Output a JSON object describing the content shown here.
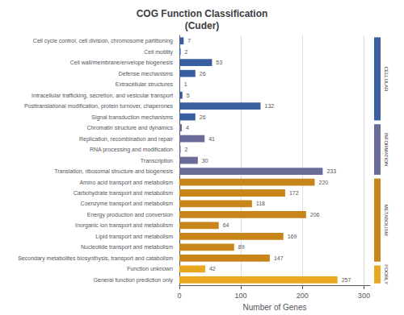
{
  "chart_data": {
    "type": "bar",
    "orientation": "horizontal",
    "title": "COG Function Classification\n(Cuder)",
    "xlabel": "Number of Genes",
    "categories": [
      "General function prediction only",
      "Function unknown",
      "Secondary metabolites biosynthysis, transport and catabolism",
      "Nucleotide transport and metabolism",
      "Lipid transport and metabolism",
      "Inorganic ion transport and metabolism",
      "Energy production and conversion",
      "Coenzyme transport and metabolism",
      "Carbohydrate transport and metabolism",
      "Amino acid transport and metabolism",
      "Translation, ribosomal structure and biogenesis",
      "Transcription",
      "RNA processing and modification",
      "Replication, recombination and repair",
      "Chromatin structure and dynamics",
      "Signal transduction mechanisms",
      "Posttranslational modification, protein turnover, chaperones",
      "Intracellular trafficking, secretion, and vesicular transport",
      "Extracellular structures",
      "Defense mechanisms",
      "Cell wall/membrane/envelope biogenesis",
      "Cell motility",
      "Cell cycle control, cell division, chromosome partitioning"
    ],
    "values": [
      257,
      42,
      147,
      89,
      169,
      64,
      206,
      118,
      172,
      220,
      233,
      30,
      2,
      41,
      4,
      26,
      132,
      5,
      1,
      26,
      53,
      2,
      7
    ],
    "colors": [
      "#E8A820",
      "#E8A820",
      "#C8851A",
      "#C8851A",
      "#C8851A",
      "#C8851A",
      "#C8851A",
      "#C8851A",
      "#C8851A",
      "#C8851A",
      "#6B6B9A",
      "#6B6B9A",
      "#6B6B9A",
      "#6B6B9A",
      "#6B6B9A",
      "#3A5FA0",
      "#3A5FA0",
      "#3A5FA0",
      "#3A5FA0",
      "#3A5FA0",
      "#3A5FA0",
      "#3A5FA0",
      "#3A5FA0"
    ],
    "xlim": [
      0,
      310
    ],
    "xticks": [
      0,
      100,
      200,
      300
    ],
    "grid": true,
    "data_labels": true,
    "annotations": [
      {
        "text": "CELLULAR",
        "start": 15,
        "end": 22,
        "color": "#3A5FA0"
      },
      {
        "text": "INFORMATION",
        "start": 10,
        "end": 14,
        "color": "#6B6B9A"
      },
      {
        "text": "METABOLISM",
        "start": 2,
        "end": 9,
        "color": "#C8851A"
      },
      {
        "text": "POORLY",
        "start": 0,
        "end": 1,
        "color": "#E8A820"
      }
    ]
  }
}
